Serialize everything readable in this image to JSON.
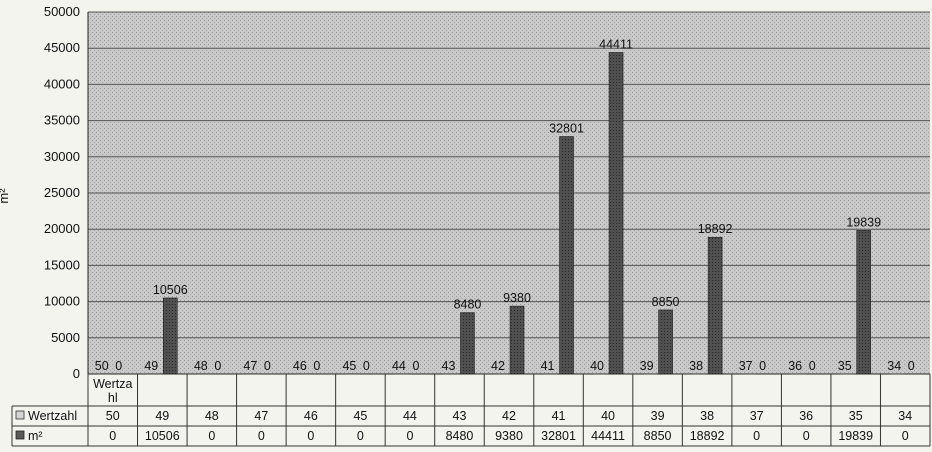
{
  "chart_data": {
    "type": "bar",
    "title": "",
    "xlabel": "",
    "ylabel": "m²",
    "ylim": [
      0,
      50000
    ],
    "yticks": [
      0,
      5000,
      10000,
      15000,
      20000,
      25000,
      30000,
      35000,
      40000,
      45000,
      50000
    ],
    "grid": true,
    "categories": [
      "50",
      "49",
      "48",
      "47",
      "46",
      "45",
      "44",
      "43",
      "42",
      "41",
      "40",
      "39",
      "38",
      "37",
      "36",
      "35",
      "34"
    ],
    "table_header": "Wertza\nhl",
    "series": [
      {
        "name": "Wertzahl",
        "values": [
          50,
          49,
          48,
          47,
          46,
          45,
          44,
          43,
          42,
          41,
          40,
          39,
          38,
          37,
          36,
          35,
          34
        ],
        "color": "#d4d4d4"
      },
      {
        "name": "m²",
        "values": [
          0,
          10506,
          0,
          0,
          0,
          0,
          0,
          8480,
          9380,
          32801,
          44411,
          8850,
          18892,
          0,
          0,
          19839,
          0
        ],
        "color": "#5a5a5a"
      }
    ]
  }
}
